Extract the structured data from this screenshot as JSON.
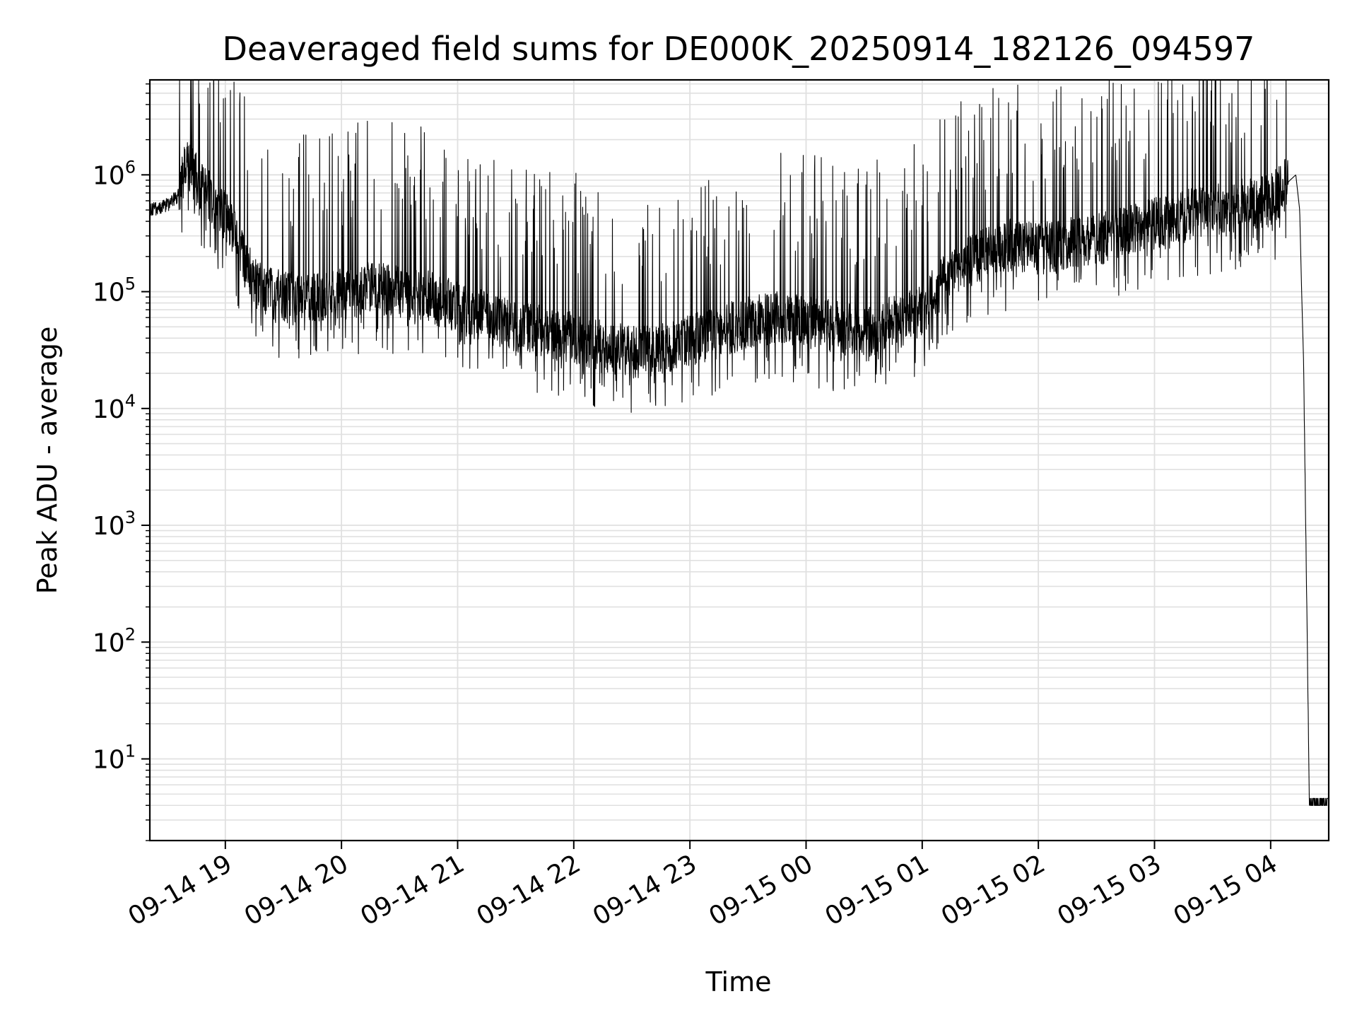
{
  "chart_data": {
    "type": "line",
    "title": "Deaveraged field sums for DE000K_20250914_182126_094597",
    "xlabel": "Time",
    "ylabel": "Peak ADU - average",
    "yscale": "log",
    "ylim": [
      2,
      6500000
    ],
    "xlim": [
      "2025-09-14T18:21:00",
      "2025-09-15T04:30:00"
    ],
    "grid": true,
    "line_color": "#000000",
    "grid_color": "#e0e0e0",
    "x_ticks": [
      {
        "value": "2025-09-14T19:00:00",
        "label": "09-14 19"
      },
      {
        "value": "2025-09-14T20:00:00",
        "label": "09-14 20"
      },
      {
        "value": "2025-09-14T21:00:00",
        "label": "09-14 21"
      },
      {
        "value": "2025-09-14T22:00:00",
        "label": "09-14 22"
      },
      {
        "value": "2025-09-14T23:00:00",
        "label": "09-14 23"
      },
      {
        "value": "2025-09-15T00:00:00",
        "label": "09-15 00"
      },
      {
        "value": "2025-09-15T01:00:00",
        "label": "09-15 01"
      },
      {
        "value": "2025-09-15T02:00:00",
        "label": "09-15 02"
      },
      {
        "value": "2025-09-15T03:00:00",
        "label": "09-15 03"
      },
      {
        "value": "2025-09-15T04:00:00",
        "label": "09-15 04"
      }
    ],
    "y_ticks": [
      {
        "value": 10,
        "base": "10",
        "exp": "1"
      },
      {
        "value": 100,
        "base": "10",
        "exp": "2"
      },
      {
        "value": 1000,
        "base": "10",
        "exp": "3"
      },
      {
        "value": 10000,
        "base": "10",
        "exp": "4"
      },
      {
        "value": 100000,
        "base": "10",
        "exp": "5"
      },
      {
        "value": 1000000,
        "base": "10",
        "exp": "6"
      }
    ],
    "series": [
      {
        "x": [
          "2025-09-14T18:21:00",
          "2025-09-14T18:30:00",
          "2025-09-14T18:35:00",
          "2025-09-14T18:40:00",
          "2025-09-14T18:50:00",
          "2025-09-14T19:00:00",
          "2025-09-14T19:05:00",
          "2025-09-14T19:10:00",
          "2025-09-14T19:15:00",
          "2025-09-14T19:20:00",
          "2025-09-14T19:30:00",
          "2025-09-14T19:45:00",
          "2025-09-14T20:00:00",
          "2025-09-14T20:15:00",
          "2025-09-14T20:30:00",
          "2025-09-14T20:45:00",
          "2025-09-14T21:00:00",
          "2025-09-14T21:15:00",
          "2025-09-14T21:30:00",
          "2025-09-14T21:45:00",
          "2025-09-14T22:00:00",
          "2025-09-14T22:15:00",
          "2025-09-14T22:30:00",
          "2025-09-14T22:45:00",
          "2025-09-14T23:00:00",
          "2025-09-14T23:15:00",
          "2025-09-14T23:30:00",
          "2025-09-14T23:45:00",
          "2025-09-15T00:00:00",
          "2025-09-15T00:15:00",
          "2025-09-15T00:30:00",
          "2025-09-15T00:45:00",
          "2025-09-15T01:00:00",
          "2025-09-15T01:15:00",
          "2025-09-15T01:30:00",
          "2025-09-15T01:45:00",
          "2025-09-15T02:00:00",
          "2025-09-15T02:15:00",
          "2025-09-15T02:30:00",
          "2025-09-15T02:45:00",
          "2025-09-15T03:00:00",
          "2025-09-15T03:15:00",
          "2025-09-15T03:30:00",
          "2025-09-15T03:45:00",
          "2025-09-15T04:00:00",
          "2025-09-15T04:10:00",
          "2025-09-15T04:13:00",
          "2025-09-15T04:15:00",
          "2025-09-15T04:16:00",
          "2025-09-15T04:17:00",
          "2025-09-15T04:20:00",
          "2025-09-15T04:30:00"
        ],
        "y": [
          500000,
          550000,
          650000,
          1200000,
          700000,
          450000,
          300000,
          180000,
          120000,
          100000,
          90000,
          85000,
          95000,
          110000,
          100000,
          90000,
          75000,
          60000,
          50000,
          45000,
          40000,
          35000,
          30000,
          32000,
          38000,
          45000,
          55000,
          60000,
          55000,
          50000,
          45000,
          55000,
          70000,
          150000,
          200000,
          250000,
          230000,
          260000,
          280000,
          320000,
          380000,
          450000,
          500000,
          550000,
          600000,
          900000,
          1000000,
          500000,
          100000,
          25000,
          4,
          4
        ]
      }
    ]
  }
}
